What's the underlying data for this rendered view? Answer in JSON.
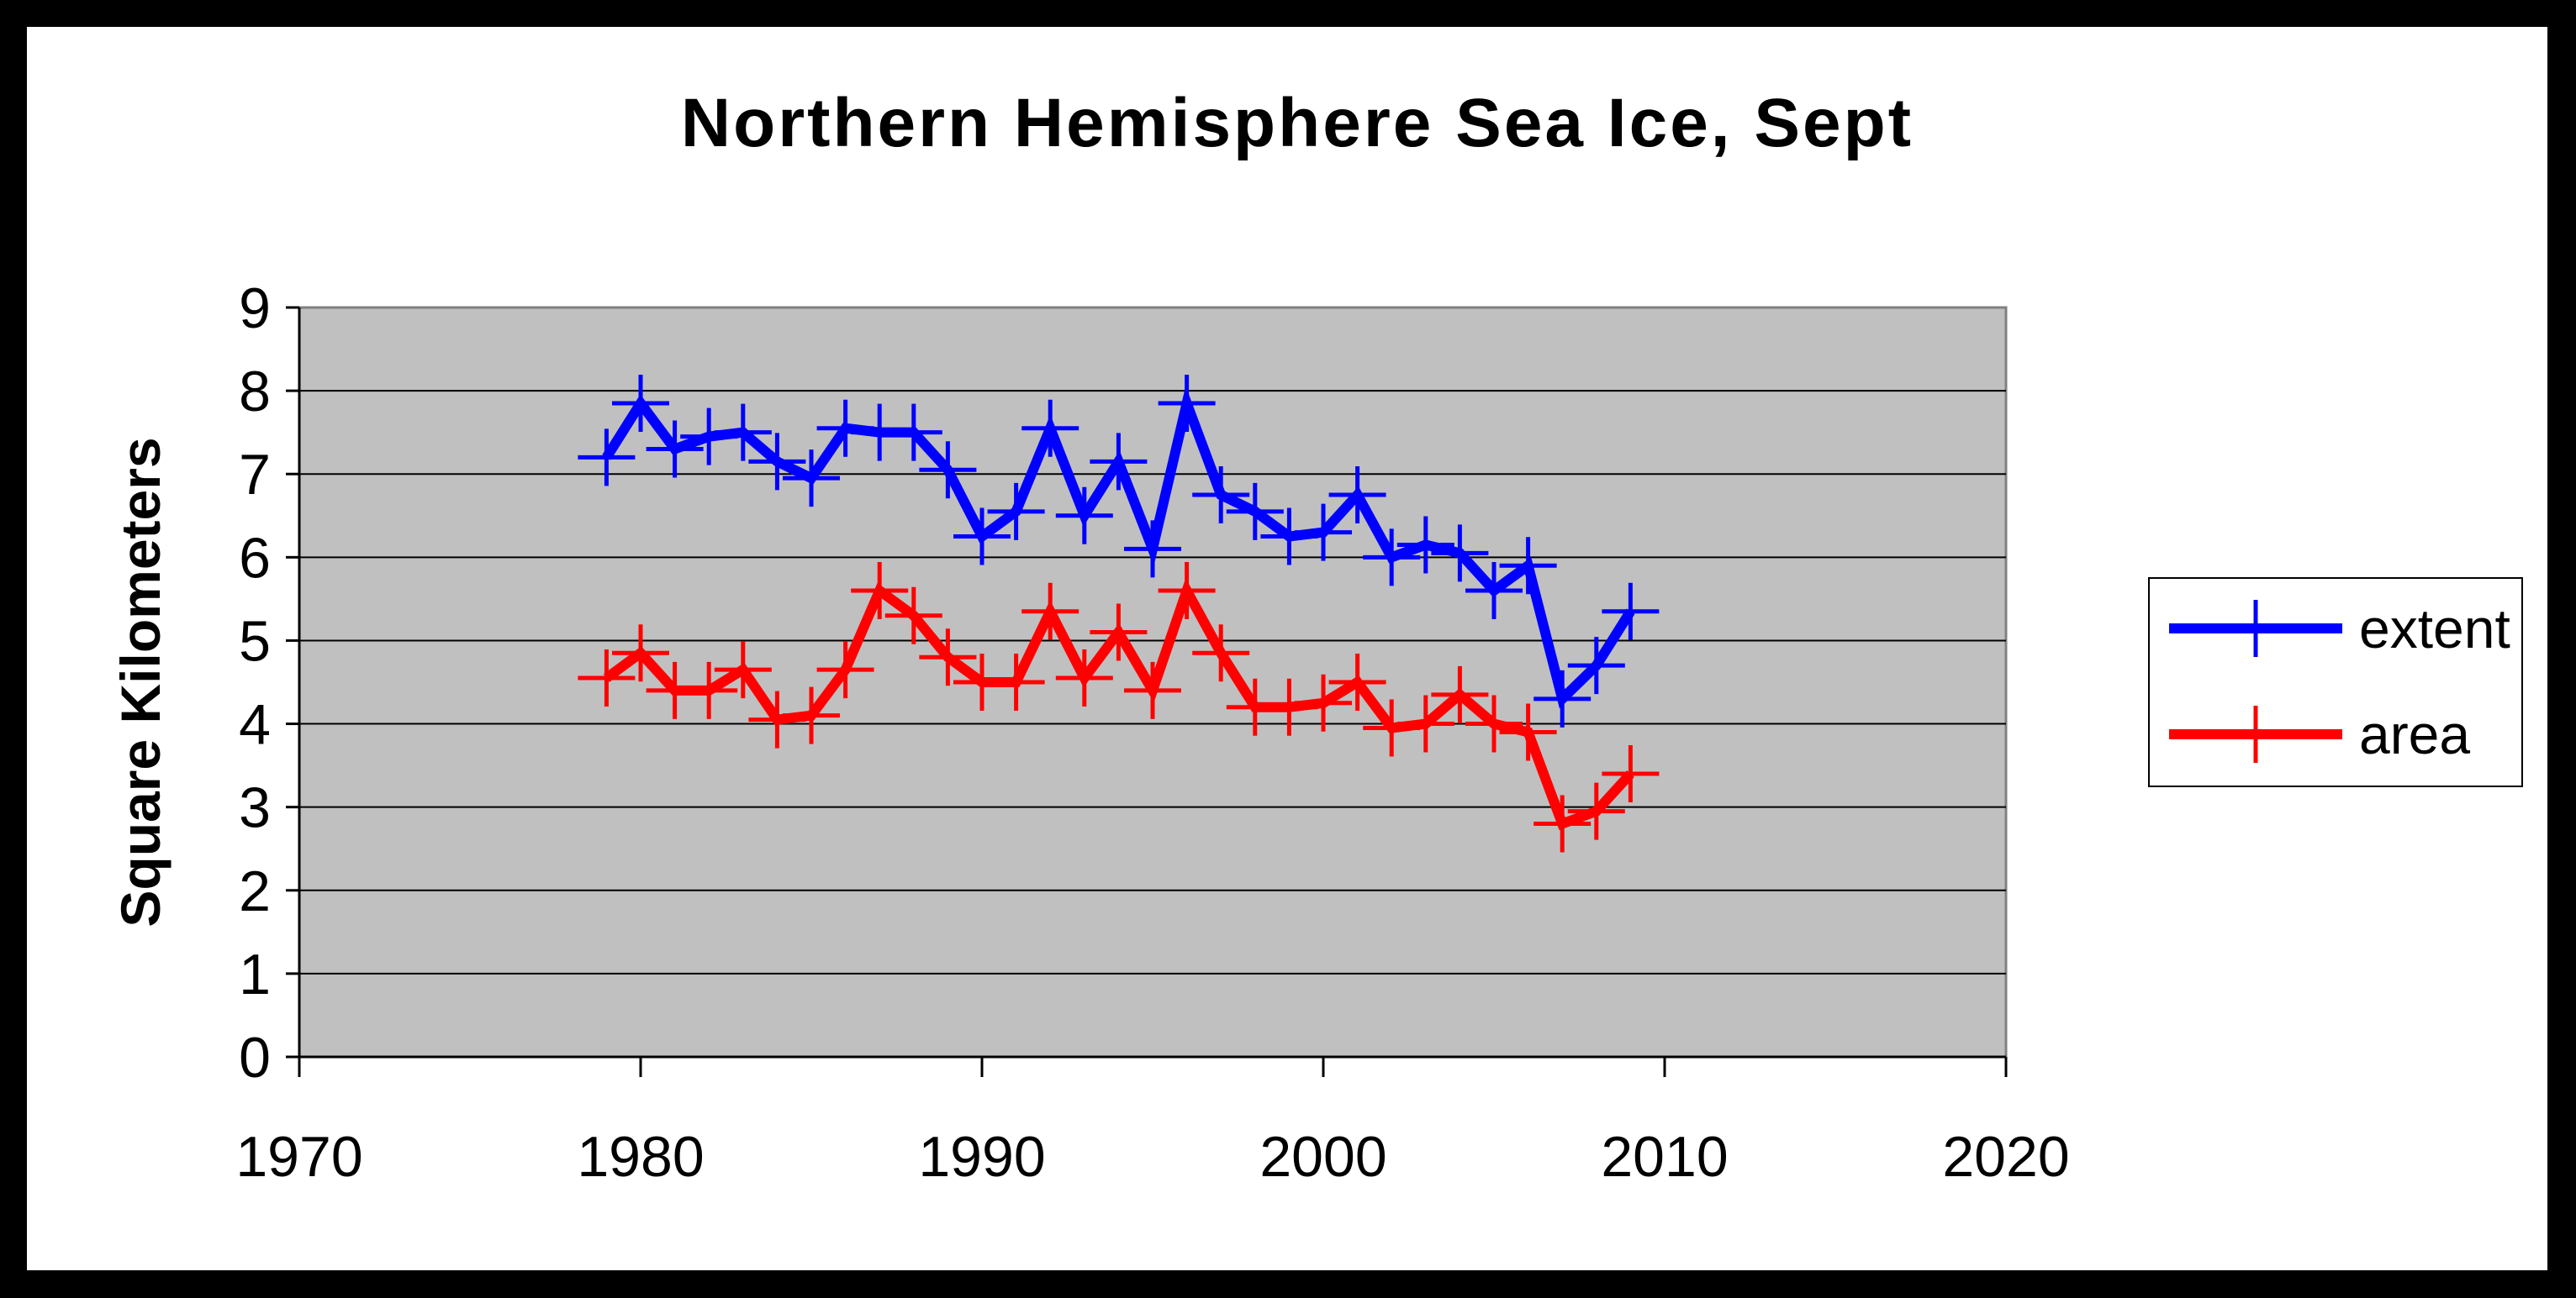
{
  "chart_data": {
    "type": "line",
    "title": "Northern Hemisphere Sea Ice, Sept",
    "xlabel": "",
    "ylabel": "Square Kilometers",
    "xlim": [
      1970,
      2020
    ],
    "ylim": [
      0,
      9
    ],
    "x_ticks": [
      1970,
      1980,
      1990,
      2000,
      2010,
      2020
    ],
    "y_ticks": [
      0,
      1,
      2,
      3,
      4,
      5,
      6,
      7,
      8,
      9
    ],
    "grid": "horizontal",
    "plot_background": "#c0c0c0",
    "legend_position": "right",
    "x": [
      1979,
      1980,
      1981,
      1982,
      1983,
      1984,
      1985,
      1986,
      1987,
      1988,
      1989,
      1990,
      1991,
      1992,
      1993,
      1994,
      1995,
      1996,
      1997,
      1998,
      1999,
      2000,
      2001,
      2002,
      2003,
      2004,
      2005,
      2006,
      2007,
      2008,
      2009
    ],
    "series": [
      {
        "name": "extent",
        "color": "#0000ff",
        "values": [
          7.2,
          7.85,
          7.3,
          7.45,
          7.5,
          7.15,
          6.95,
          7.55,
          7.5,
          7.5,
          7.05,
          6.25,
          6.55,
          7.55,
          6.5,
          7.15,
          6.1,
          7.85,
          6.75,
          6.55,
          6.25,
          6.3,
          6.75,
          6.0,
          6.15,
          6.05,
          5.6,
          5.9,
          4.3,
          4.7,
          5.35
        ]
      },
      {
        "name": "area",
        "color": "#ff0000",
        "values": [
          4.55,
          4.85,
          4.4,
          4.4,
          4.65,
          4.05,
          4.1,
          4.65,
          5.6,
          5.3,
          4.8,
          4.5,
          4.5,
          5.35,
          4.55,
          5.1,
          4.4,
          5.6,
          4.85,
          4.2,
          4.2,
          4.25,
          4.5,
          3.95,
          4.0,
          4.35,
          4.0,
          3.9,
          2.8,
          2.95,
          3.4
        ]
      }
    ]
  }
}
